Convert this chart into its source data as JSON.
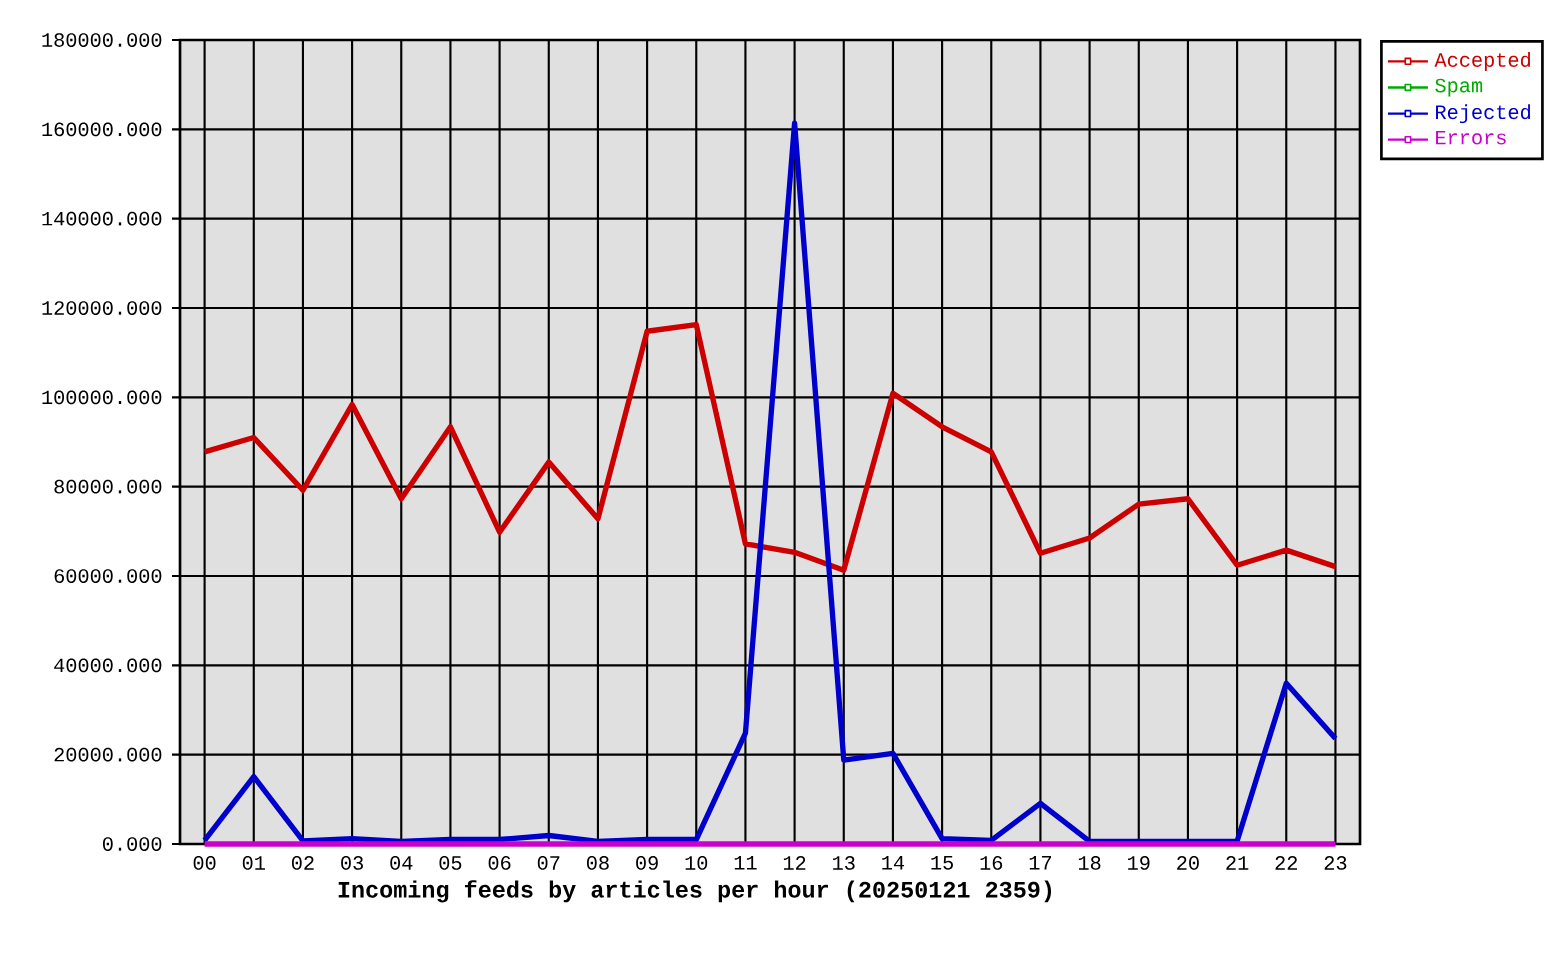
{
  "chart_data": {
    "type": "line",
    "xlabel": "Incoming feeds by articles per hour (20250121 2359)",
    "categories": [
      "00",
      "01",
      "02",
      "03",
      "04",
      "05",
      "06",
      "07",
      "08",
      "09",
      "10",
      "11",
      "12",
      "13",
      "14",
      "15",
      "16",
      "17",
      "18",
      "19",
      "20",
      "21",
      "22",
      "23"
    ],
    "ylim": [
      0,
      180000
    ],
    "yticks": [
      {
        "value": 0,
        "label": "0.000"
      },
      {
        "value": 20000,
        "label": "20000.000"
      },
      {
        "value": 40000,
        "label": "40000.000"
      },
      {
        "value": 60000,
        "label": "60000.000"
      },
      {
        "value": 80000,
        "label": "80000.000"
      },
      {
        "value": 100000,
        "label": "100000.000"
      },
      {
        "value": 120000,
        "label": "120000.000"
      },
      {
        "value": 140000,
        "label": "140000.000"
      },
      {
        "value": 160000,
        "label": "160000.000"
      },
      {
        "value": 180000,
        "label": "180000.000"
      }
    ],
    "grid": true,
    "legend": "top right",
    "series": [
      {
        "name": "Accepted",
        "color": "#cc0000",
        "values": [
          87800,
          91000,
          79200,
          98400,
          77300,
          93400,
          69800,
          85500,
          72800,
          114800,
          116300,
          67200,
          65300,
          61300,
          100900,
          93400,
          87800,
          65100,
          68500,
          76100,
          77300,
          62400,
          65800,
          62100
        ]
      },
      {
        "name": "Spam",
        "color": "#00aa00",
        "values": [
          null,
          null,
          null,
          null,
          null,
          null,
          null,
          null,
          null,
          null,
          null,
          null,
          null,
          null,
          null,
          null,
          null,
          null,
          null,
          null,
          null,
          null,
          null,
          null
        ]
      },
      {
        "name": "Rejected",
        "color": "#0000cc",
        "values": [
          800,
          15100,
          700,
          1200,
          600,
          1000,
          1000,
          1900,
          600,
          1000,
          1000,
          24800,
          161400,
          18800,
          20300,
          1200,
          800,
          9100,
          600,
          600,
          600,
          600,
          36000,
          23600
        ]
      },
      {
        "name": "Errors",
        "color": "#cc00cc",
        "values": [
          0,
          0,
          0,
          0,
          0,
          0,
          0,
          0,
          0,
          0,
          0,
          0,
          0,
          0,
          0,
          0,
          0,
          0,
          0,
          0,
          0,
          0,
          0,
          0
        ]
      }
    ]
  }
}
